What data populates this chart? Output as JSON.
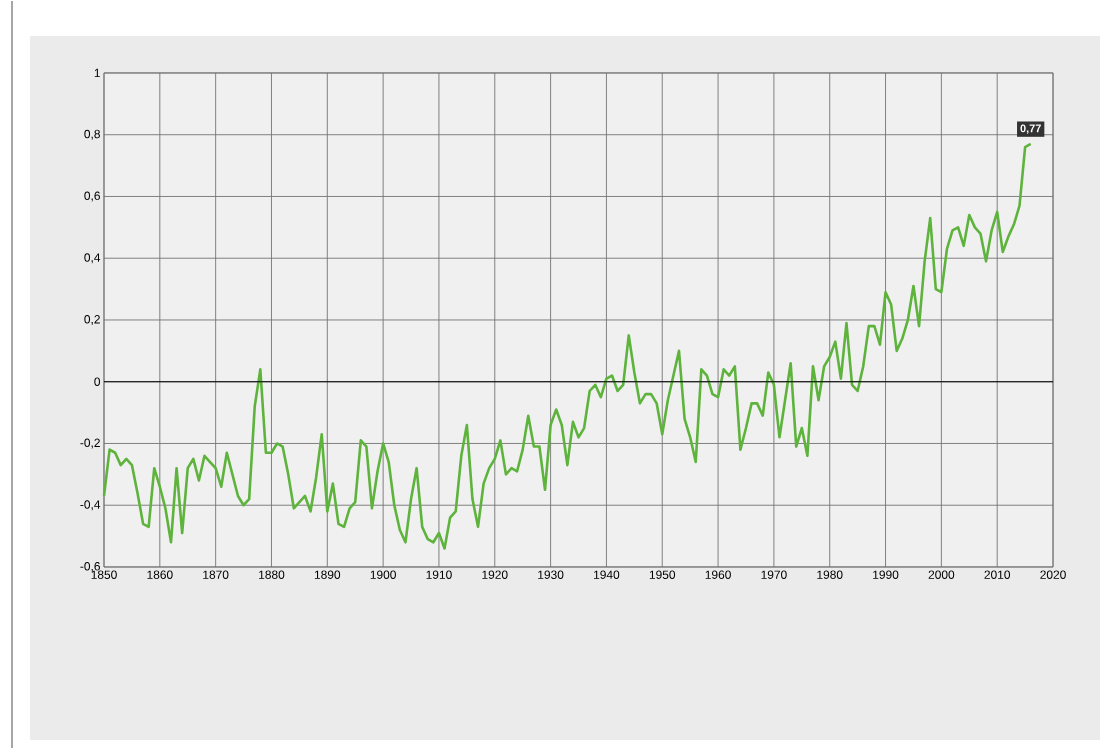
{
  "chart_data": {
    "type": "line",
    "x": [
      1850,
      1851,
      1852,
      1853,
      1854,
      1855,
      1856,
      1857,
      1858,
      1859,
      1860,
      1861,
      1862,
      1863,
      1864,
      1865,
      1866,
      1867,
      1868,
      1869,
      1870,
      1871,
      1872,
      1873,
      1874,
      1875,
      1876,
      1877,
      1878,
      1879,
      1880,
      1881,
      1882,
      1883,
      1884,
      1885,
      1886,
      1887,
      1888,
      1889,
      1890,
      1891,
      1892,
      1893,
      1894,
      1895,
      1896,
      1897,
      1898,
      1899,
      1900,
      1901,
      1902,
      1903,
      1904,
      1905,
      1906,
      1907,
      1908,
      1909,
      1910,
      1911,
      1912,
      1913,
      1914,
      1915,
      1916,
      1917,
      1918,
      1919,
      1920,
      1921,
      1922,
      1923,
      1924,
      1925,
      1926,
      1927,
      1928,
      1929,
      1930,
      1931,
      1932,
      1933,
      1934,
      1935,
      1936,
      1937,
      1938,
      1939,
      1940,
      1941,
      1942,
      1943,
      1944,
      1945,
      1946,
      1947,
      1948,
      1949,
      1950,
      1951,
      1952,
      1953,
      1954,
      1955,
      1956,
      1957,
      1958,
      1959,
      1960,
      1961,
      1962,
      1963,
      1964,
      1965,
      1966,
      1967,
      1968,
      1969,
      1970,
      1971,
      1972,
      1973,
      1974,
      1975,
      1976,
      1977,
      1978,
      1979,
      1980,
      1981,
      1982,
      1983,
      1984,
      1985,
      1986,
      1987,
      1988,
      1989,
      1990,
      1991,
      1992,
      1993,
      1994,
      1995,
      1996,
      1997,
      1998,
      1999,
      2000,
      2001,
      2002,
      2003,
      2004,
      2005,
      2006,
      2007,
      2008,
      2009,
      2010,
      2011,
      2012,
      2013,
      2014,
      2015,
      2016
    ],
    "series": [
      {
        "color": "#5db33c",
        "values": [
          -0.37,
          -0.22,
          -0.23,
          -0.27,
          -0.25,
          -0.27,
          -0.36,
          -0.46,
          -0.47,
          -0.28,
          -0.34,
          -0.41,
          -0.52,
          -0.28,
          -0.49,
          -0.28,
          -0.25,
          -0.32,
          -0.24,
          -0.26,
          -0.28,
          -0.34,
          -0.23,
          -0.3,
          -0.37,
          -0.4,
          -0.38,
          -0.08,
          0.04,
          -0.23,
          -0.23,
          -0.2,
          -0.21,
          -0.3,
          -0.41,
          -0.39,
          -0.37,
          -0.42,
          -0.31,
          -0.17,
          -0.42,
          -0.33,
          -0.46,
          -0.47,
          -0.41,
          -0.39,
          -0.19,
          -0.21,
          -0.41,
          -0.29,
          -0.2,
          -0.26,
          -0.4,
          -0.48,
          -0.52,
          -0.38,
          -0.28,
          -0.47,
          -0.51,
          -0.52,
          -0.49,
          -0.54,
          -0.44,
          -0.42,
          -0.24,
          -0.14,
          -0.38,
          -0.47,
          -0.33,
          -0.28,
          -0.25,
          -0.19,
          -0.3,
          -0.28,
          -0.29,
          -0.22,
          -0.11,
          -0.21,
          -0.21,
          -0.35,
          -0.14,
          -0.09,
          -0.14,
          -0.27,
          -0.13,
          -0.18,
          -0.15,
          -0.03,
          -0.01,
          -0.05,
          0.01,
          0.02,
          -0.03,
          -0.01,
          0.15,
          0.03,
          -0.07,
          -0.04,
          -0.04,
          -0.07,
          -0.17,
          -0.06,
          0.02,
          0.1,
          -0.12,
          -0.18,
          -0.26,
          0.04,
          0.02,
          -0.04,
          -0.05,
          0.04,
          0.02,
          0.05,
          -0.22,
          -0.15,
          -0.07,
          -0.07,
          -0.11,
          0.03,
          -0.01,
          -0.18,
          -0.06,
          0.06,
          -0.21,
          -0.15,
          -0.24,
          0.05,
          -0.06,
          0.05,
          0.08,
          0.13,
          0.01,
          0.19,
          -0.01,
          -0.03,
          0.05,
          0.18,
          0.18,
          0.12,
          0.29,
          0.25,
          0.1,
          0.14,
          0.2,
          0.31,
          0.18,
          0.39,
          0.53,
          0.3,
          0.29,
          0.43,
          0.49,
          0.5,
          0.44,
          0.54,
          0.5,
          0.48,
          0.39,
          0.49,
          0.55,
          0.42,
          0.47,
          0.51,
          0.57,
          0.76,
          0.77
        ]
      }
    ],
    "xlim": [
      1850,
      2020
    ],
    "xticks": [
      1850,
      1860,
      1870,
      1880,
      1890,
      1900,
      1910,
      1920,
      1930,
      1940,
      1950,
      1960,
      1970,
      1980,
      1990,
      2000,
      2010,
      2020
    ],
    "ylim": [
      -0.6,
      1
    ],
    "yticks": [
      {
        "value": -0.6,
        "label": "-0,6"
      },
      {
        "value": -0.4,
        "label": "-0,4"
      },
      {
        "value": -0.2,
        "label": "-0,2"
      },
      0,
      {
        "value": 0.2,
        "label": "0,2"
      },
      {
        "value": 0.4,
        "label": "0,4"
      },
      {
        "value": 0.6,
        "label": "0,6"
      },
      {
        "value": 0.8,
        "label": "0,8"
      },
      1
    ],
    "grid": true,
    "marker": "none",
    "line_style": "solid",
    "ref_lines": [
      {
        "axis": "y",
        "value": 0,
        "color": "#000000"
      }
    ],
    "annotations": [
      {
        "text": "0,77",
        "x": 2016,
        "y": 0.77
      }
    ]
  }
}
